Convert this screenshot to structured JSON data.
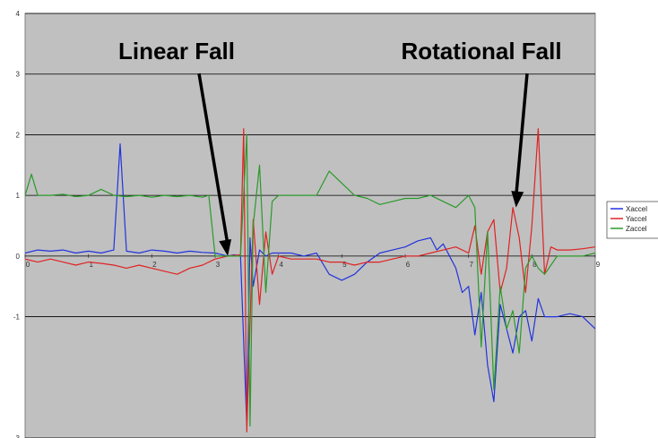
{
  "chart_data": {
    "type": "line",
    "title": "",
    "xlabel": "",
    "ylabel": "",
    "xlim": [
      0,
      9
    ],
    "ylim": [
      -3,
      4
    ],
    "x_ticks": [
      "0",
      "1",
      "2",
      "3",
      "4",
      "5",
      "6",
      "7",
      "8",
      "9"
    ],
    "y_ticks": [
      "-3",
      "-1",
      "0",
      "1",
      "2",
      "3",
      "4"
    ],
    "grid": "horizontal",
    "plot_background": "#c0c0c0",
    "legend_position": "right",
    "annotations": [
      {
        "text": "Linear Fall",
        "points_to": [
          3.2,
          0.0
        ]
      },
      {
        "text": "Rotational Fall",
        "points_to": [
          7.75,
          0.8
        ]
      }
    ],
    "series": [
      {
        "name": "Xaccel",
        "color": "#2233dd",
        "x": [
          0,
          0.2,
          0.4,
          0.6,
          0.8,
          1.0,
          1.2,
          1.4,
          1.5,
          1.6,
          1.8,
          2.0,
          2.2,
          2.4,
          2.6,
          2.8,
          3.0,
          3.2,
          3.3,
          3.4,
          3.5,
          3.55,
          3.6,
          3.7,
          3.8,
          3.9,
          4.0,
          4.2,
          4.4,
          4.6,
          4.8,
          5.0,
          5.2,
          5.4,
          5.6,
          5.8,
          6.0,
          6.2,
          6.4,
          6.5,
          6.6,
          6.8,
          6.9,
          7.0,
          7.1,
          7.2,
          7.3,
          7.4,
          7.5,
          7.6,
          7.7,
          7.8,
          7.9,
          8.0,
          8.1,
          8.2,
          8.4,
          8.6,
          8.8,
          9.0
        ],
        "y": [
          0.05,
          0.1,
          0.08,
          0.1,
          0.05,
          0.08,
          0.05,
          0.1,
          1.85,
          0.08,
          0.05,
          0.1,
          0.08,
          0.05,
          0.08,
          0.06,
          0.05,
          0.0,
          0.02,
          0.0,
          -2.8,
          0.3,
          -0.5,
          0.1,
          0.0,
          0.05,
          0.05,
          0.05,
          0.0,
          0.05,
          -0.3,
          -0.4,
          -0.3,
          -0.1,
          0.05,
          0.1,
          0.15,
          0.25,
          0.3,
          0.1,
          0.2,
          -0.2,
          -0.6,
          -0.5,
          -1.3,
          -0.6,
          -1.8,
          -2.4,
          -0.8,
          -1.2,
          -1.6,
          -1.0,
          -0.9,
          -1.4,
          -0.7,
          -1.0,
          -1.0,
          -0.95,
          -1.0,
          -1.2
        ]
      },
      {
        "name": "Yaccel",
        "color": "#e02222",
        "x": [
          0,
          0.2,
          0.4,
          0.6,
          0.8,
          1.0,
          1.2,
          1.4,
          1.6,
          1.8,
          2.0,
          2.2,
          2.4,
          2.6,
          2.8,
          3.0,
          3.2,
          3.4,
          3.45,
          3.5,
          3.6,
          3.7,
          3.8,
          3.9,
          4.0,
          4.2,
          4.4,
          4.6,
          4.8,
          5.0,
          5.2,
          5.4,
          5.6,
          5.8,
          6.0,
          6.2,
          6.4,
          6.6,
          6.8,
          7.0,
          7.1,
          7.2,
          7.3,
          7.4,
          7.5,
          7.6,
          7.7,
          7.8,
          7.9,
          8.0,
          8.1,
          8.2,
          8.3,
          8.4,
          8.6,
          8.8,
          9.0
        ],
        "y": [
          -0.05,
          -0.1,
          -0.05,
          -0.1,
          -0.15,
          -0.1,
          -0.12,
          -0.15,
          -0.2,
          -0.15,
          -0.2,
          -0.25,
          -0.3,
          -0.2,
          -0.15,
          -0.05,
          0.0,
          0.02,
          2.1,
          -2.9,
          0.6,
          -0.8,
          0.4,
          -0.3,
          0.0,
          -0.05,
          -0.05,
          -0.05,
          -0.1,
          -0.1,
          -0.15,
          -0.1,
          -0.1,
          -0.05,
          0.0,
          0.0,
          0.05,
          0.1,
          0.15,
          0.05,
          0.5,
          -0.3,
          0.4,
          0.6,
          -0.6,
          -0.2,
          0.8,
          0.3,
          -0.6,
          0.5,
          2.1,
          -0.3,
          0.15,
          0.1,
          0.1,
          0.12,
          0.15
        ]
      },
      {
        "name": "Zaccel",
        "color": "#2a9a2a",
        "x": [
          0,
          0.1,
          0.2,
          0.4,
          0.6,
          0.8,
          1.0,
          1.2,
          1.4,
          1.6,
          1.8,
          2.0,
          2.2,
          2.4,
          2.6,
          2.8,
          2.9,
          3.0,
          3.1,
          3.2,
          3.4,
          3.5,
          3.55,
          3.6,
          3.7,
          3.8,
          3.9,
          4.0,
          4.2,
          4.4,
          4.6,
          4.8,
          5.0,
          5.2,
          5.4,
          5.6,
          5.8,
          6.0,
          6.2,
          6.4,
          6.6,
          6.8,
          7.0,
          7.1,
          7.2,
          7.3,
          7.4,
          7.5,
          7.6,
          7.7,
          7.8,
          7.9,
          8.0,
          8.1,
          8.2,
          8.4,
          8.6,
          8.8,
          9.0
        ],
        "y": [
          1.0,
          1.35,
          1.0,
          1.0,
          1.02,
          0.98,
          1.0,
          1.1,
          1.0,
          0.98,
          1.0,
          0.97,
          1.0,
          0.98,
          1.0,
          0.97,
          1.0,
          0.0,
          0.0,
          0.0,
          0.0,
          2.0,
          -2.8,
          0.5,
          1.5,
          -0.6,
          0.9,
          1.0,
          1.0,
          1.0,
          1.0,
          1.4,
          1.2,
          1.0,
          0.95,
          0.85,
          0.9,
          0.95,
          0.95,
          1.0,
          0.9,
          0.8,
          1.0,
          0.8,
          -1.5,
          0.4,
          -2.2,
          -0.5,
          -1.2,
          -0.9,
          -1.6,
          -0.2,
          0.0,
          -0.2,
          -0.3,
          0.0,
          0.0,
          0.0,
          0.05
        ]
      }
    ]
  }
}
